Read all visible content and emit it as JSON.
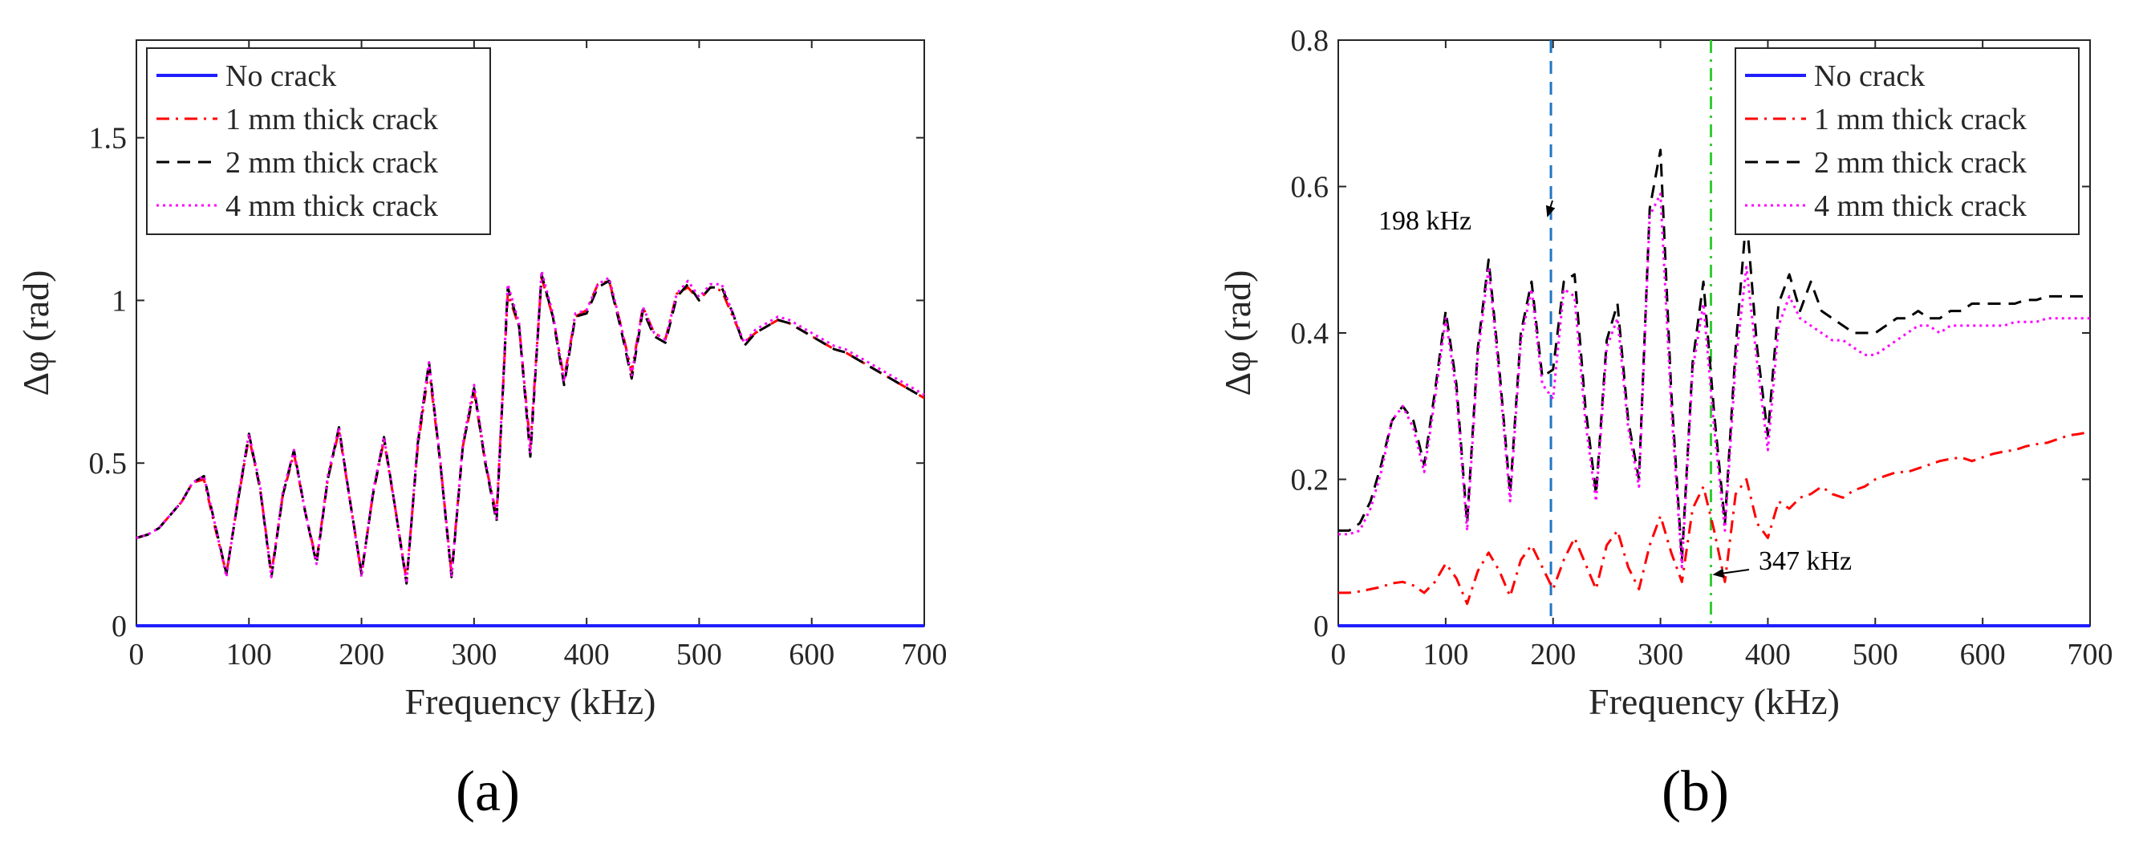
{
  "chart_data": [
    {
      "type": "line",
      "panel_label": "(a)",
      "xlabel": "Frequency (kHz)",
      "ylabel": "Δφ (rad)",
      "xlim": [
        0,
        700
      ],
      "ylim": [
        0,
        1.8
      ],
      "xticks": [
        0,
        100,
        200,
        300,
        400,
        500,
        600,
        700
      ],
      "xtick_labels": [
        "0",
        "100",
        "200",
        "300",
        "400",
        "500",
        "600",
        "700"
      ],
      "yticks": [
        0,
        0.5,
        1,
        1.5
      ],
      "ytick_labels": [
        "0",
        "0.5",
        "1",
        "1.5"
      ],
      "legend_position": "top-left",
      "x": [
        0,
        10,
        20,
        30,
        40,
        50,
        60,
        70,
        80,
        90,
        100,
        110,
        120,
        130,
        140,
        150,
        160,
        170,
        180,
        190,
        200,
        210,
        220,
        230,
        240,
        250,
        260,
        270,
        280,
        290,
        300,
        310,
        320,
        330,
        340,
        350,
        360,
        370,
        380,
        390,
        400,
        410,
        420,
        430,
        440,
        450,
        460,
        470,
        480,
        490,
        500,
        510,
        520,
        530,
        540,
        550,
        560,
        570,
        580,
        590,
        600,
        610,
        620,
        630,
        640,
        650,
        660,
        670,
        680,
        690,
        700
      ],
      "series": [
        {
          "name": "No crack",
          "color": "#1f1fff",
          "style": "solid",
          "values": [
            0,
            0,
            0,
            0,
            0,
            0,
            0,
            0,
            0,
            0,
            0,
            0,
            0,
            0,
            0,
            0,
            0,
            0,
            0,
            0,
            0,
            0,
            0,
            0,
            0,
            0,
            0,
            0,
            0,
            0,
            0,
            0,
            0,
            0,
            0,
            0,
            0,
            0,
            0,
            0,
            0,
            0,
            0,
            0,
            0,
            0,
            0,
            0,
            0,
            0,
            0,
            0,
            0,
            0,
            0,
            0,
            0,
            0,
            0,
            0,
            0,
            0,
            0,
            0,
            0,
            0,
            0,
            0,
            0,
            0,
            0
          ]
        },
        {
          "name": "1 mm thick crack",
          "color": "#ff0000",
          "style": "dashdot",
          "values": [
            0.27,
            0.28,
            0.3,
            0.34,
            0.38,
            0.44,
            0.45,
            0.3,
            0.16,
            0.38,
            0.58,
            0.42,
            0.16,
            0.4,
            0.53,
            0.35,
            0.2,
            0.45,
            0.6,
            0.38,
            0.16,
            0.4,
            0.57,
            0.36,
            0.14,
            0.55,
            0.79,
            0.5,
            0.16,
            0.55,
            0.72,
            0.5,
            0.34,
            1.02,
            0.92,
            0.55,
            1.07,
            0.95,
            0.76,
            0.95,
            0.97,
            1.05,
            1.06,
            0.93,
            0.78,
            0.98,
            0.9,
            0.88,
            1.02,
            1.04,
            1.0,
            1.04,
            1.03,
            0.95,
            0.87,
            0.9,
            0.92,
            0.94,
            0.93,
            0.91,
            0.89,
            0.87,
            0.85,
            0.84,
            0.82,
            0.8,
            0.78,
            0.76,
            0.74,
            0.72,
            0.7
          ]
        },
        {
          "name": "2 mm thick crack",
          "color": "#000000",
          "style": "dashed",
          "values": [
            0.27,
            0.28,
            0.3,
            0.34,
            0.38,
            0.44,
            0.46,
            0.31,
            0.16,
            0.38,
            0.59,
            0.42,
            0.15,
            0.4,
            0.54,
            0.35,
            0.19,
            0.45,
            0.61,
            0.38,
            0.16,
            0.4,
            0.58,
            0.36,
            0.13,
            0.56,
            0.81,
            0.5,
            0.15,
            0.55,
            0.73,
            0.5,
            0.32,
            1.04,
            0.92,
            0.52,
            1.08,
            0.95,
            0.74,
            0.95,
            0.96,
            1.04,
            1.06,
            0.92,
            0.76,
            0.97,
            0.89,
            0.87,
            1.01,
            1.05,
            1.0,
            1.04,
            1.04,
            0.96,
            0.86,
            0.9,
            0.92,
            0.94,
            0.93,
            0.91,
            0.89,
            0.87,
            0.85,
            0.84,
            0.82,
            0.8,
            0.78,
            0.76,
            0.74,
            0.72,
            0.7
          ]
        },
        {
          "name": "4 mm thick crack",
          "color": "#ff00ff",
          "style": "dotted",
          "values": [
            0.27,
            0.28,
            0.3,
            0.34,
            0.38,
            0.44,
            0.46,
            0.31,
            0.15,
            0.39,
            0.59,
            0.43,
            0.15,
            0.41,
            0.54,
            0.35,
            0.19,
            0.46,
            0.61,
            0.38,
            0.15,
            0.41,
            0.58,
            0.36,
            0.13,
            0.57,
            0.81,
            0.51,
            0.15,
            0.56,
            0.74,
            0.51,
            0.33,
            1.05,
            0.93,
            0.53,
            1.09,
            0.96,
            0.75,
            0.96,
            0.97,
            1.05,
            1.07,
            0.93,
            0.77,
            0.98,
            0.9,
            0.88,
            1.02,
            1.06,
            1.01,
            1.05,
            1.05,
            0.96,
            0.87,
            0.91,
            0.93,
            0.95,
            0.94,
            0.92,
            0.9,
            0.88,
            0.86,
            0.85,
            0.83,
            0.81,
            0.79,
            0.77,
            0.75,
            0.73,
            0.71
          ]
        }
      ]
    },
    {
      "type": "line",
      "panel_label": "(b)",
      "xlabel": "Frequency (kHz)",
      "ylabel": "Δφ (rad)",
      "xlim": [
        0,
        700
      ],
      "ylim": [
        0,
        0.8
      ],
      "xticks": [
        0,
        100,
        200,
        300,
        400,
        500,
        600,
        700
      ],
      "xtick_labels": [
        "0",
        "100",
        "200",
        "300",
        "400",
        "500",
        "600",
        "700"
      ],
      "yticks": [
        0,
        0.2,
        0.4,
        0.6,
        0.8
      ],
      "ytick_labels": [
        "0",
        "0.2",
        "0.4",
        "0.6",
        "0.8"
      ],
      "legend_position": "top-right",
      "x": [
        0,
        10,
        20,
        30,
        40,
        50,
        60,
        70,
        80,
        90,
        100,
        110,
        120,
        130,
        140,
        150,
        160,
        170,
        180,
        190,
        200,
        210,
        220,
        230,
        240,
        250,
        260,
        270,
        280,
        290,
        300,
        310,
        320,
        330,
        340,
        350,
        360,
        370,
        380,
        390,
        400,
        410,
        420,
        430,
        440,
        450,
        460,
        470,
        480,
        490,
        500,
        510,
        520,
        530,
        540,
        550,
        560,
        570,
        580,
        590,
        600,
        610,
        620,
        630,
        640,
        650,
        660,
        670,
        680,
        690,
        700
      ],
      "series": [
        {
          "name": "No crack",
          "color": "#1f1fff",
          "style": "solid",
          "values": [
            0,
            0,
            0,
            0,
            0,
            0,
            0,
            0,
            0,
            0,
            0,
            0,
            0,
            0,
            0,
            0,
            0,
            0,
            0,
            0,
            0,
            0,
            0,
            0,
            0,
            0,
            0,
            0,
            0,
            0,
            0,
            0,
            0,
            0,
            0,
            0,
            0,
            0,
            0,
            0,
            0,
            0,
            0,
            0,
            0,
            0,
            0,
            0,
            0,
            0,
            0,
            0,
            0,
            0,
            0,
            0,
            0,
            0,
            0,
            0,
            0,
            0,
            0,
            0,
            0,
            0,
            0,
            0,
            0,
            0,
            0
          ]
        },
        {
          "name": "1 mm thick crack",
          "color": "#ff0000",
          "style": "dashdot",
          "values": [
            0.045,
            0.045,
            0.047,
            0.05,
            0.053,
            0.058,
            0.06,
            0.055,
            0.045,
            0.06,
            0.085,
            0.065,
            0.03,
            0.075,
            0.1,
            0.075,
            0.04,
            0.09,
            0.11,
            0.08,
            0.05,
            0.09,
            0.12,
            0.085,
            0.05,
            0.11,
            0.13,
            0.08,
            0.05,
            0.11,
            0.15,
            0.1,
            0.06,
            0.16,
            0.19,
            0.13,
            0.06,
            0.18,
            0.2,
            0.14,
            0.12,
            0.17,
            0.16,
            0.175,
            0.18,
            0.19,
            0.18,
            0.175,
            0.185,
            0.19,
            0.2,
            0.205,
            0.21,
            0.21,
            0.215,
            0.22,
            0.225,
            0.228,
            0.23,
            0.225,
            0.23,
            0.235,
            0.238,
            0.24,
            0.245,
            0.248,
            0.25,
            0.255,
            0.26,
            0.262,
            0.265
          ]
        },
        {
          "name": "2 mm thick crack",
          "color": "#000000",
          "style": "dashed",
          "values": [
            0.13,
            0.13,
            0.14,
            0.17,
            0.22,
            0.28,
            0.3,
            0.28,
            0.22,
            0.32,
            0.43,
            0.33,
            0.14,
            0.38,
            0.5,
            0.35,
            0.18,
            0.4,
            0.47,
            0.34,
            0.35,
            0.47,
            0.48,
            0.3,
            0.18,
            0.39,
            0.44,
            0.28,
            0.2,
            0.57,
            0.65,
            0.32,
            0.09,
            0.36,
            0.47,
            0.29,
            0.14,
            0.38,
            0.56,
            0.38,
            0.26,
            0.44,
            0.48,
            0.43,
            0.47,
            0.43,
            0.42,
            0.41,
            0.4,
            0.4,
            0.4,
            0.41,
            0.42,
            0.42,
            0.43,
            0.42,
            0.42,
            0.43,
            0.43,
            0.44,
            0.44,
            0.44,
            0.44,
            0.44,
            0.445,
            0.445,
            0.45,
            0.45,
            0.45,
            0.45,
            0.45
          ]
        },
        {
          "name": "4 mm thick crack",
          "color": "#ff00ff",
          "style": "dotted",
          "values": [
            0.125,
            0.125,
            0.13,
            0.16,
            0.21,
            0.28,
            0.3,
            0.27,
            0.21,
            0.31,
            0.42,
            0.32,
            0.13,
            0.37,
            0.49,
            0.34,
            0.17,
            0.39,
            0.46,
            0.33,
            0.31,
            0.46,
            0.45,
            0.28,
            0.17,
            0.38,
            0.42,
            0.27,
            0.19,
            0.56,
            0.59,
            0.3,
            0.08,
            0.35,
            0.44,
            0.27,
            0.13,
            0.36,
            0.49,
            0.36,
            0.24,
            0.41,
            0.45,
            0.42,
            0.41,
            0.4,
            0.39,
            0.39,
            0.38,
            0.37,
            0.37,
            0.38,
            0.39,
            0.4,
            0.41,
            0.41,
            0.4,
            0.41,
            0.41,
            0.41,
            0.41,
            0.41,
            0.41,
            0.415,
            0.415,
            0.415,
            0.42,
            0.42,
            0.42,
            0.42,
            0.42
          ]
        }
      ],
      "vlines": [
        {
          "x": 198,
          "color": "#1f77c4",
          "style": "dashed"
        },
        {
          "x": 347,
          "color": "#33cc33",
          "style": "dashdot"
        }
      ],
      "annotations": [
        {
          "text": "198 kHz",
          "target_x": 198,
          "target_y": 0.56
        },
        {
          "text": "347 kHz",
          "target_x": 347,
          "target_y": 0.07
        }
      ]
    }
  ]
}
